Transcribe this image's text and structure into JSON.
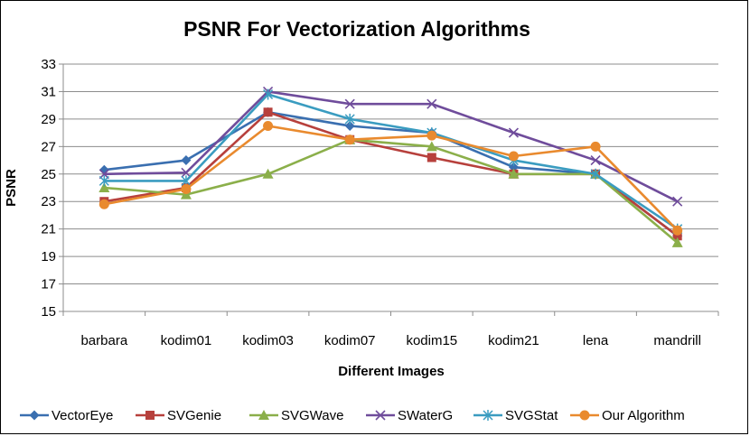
{
  "chart_data": {
    "type": "line",
    "title": "PSNR For Vectorization Algorithms",
    "xlabel": "Different Images",
    "ylabel": "PSNR",
    "ylim": [
      15,
      33
    ],
    "yticks": [
      15,
      17,
      19,
      21,
      23,
      25,
      27,
      29,
      31,
      33
    ],
    "grid": true,
    "legend_position": "bottom",
    "categories": [
      "barbara",
      "kodim01",
      "kodim03",
      "kodim07",
      "kodim15",
      "kodim21",
      "lena",
      "mandrill"
    ],
    "series": [
      {
        "name": "VectorEye",
        "color": "#3A6FB0",
        "marker": "diamond",
        "values": [
          25.3,
          26.0,
          29.5,
          28.5,
          28.0,
          25.5,
          25.0,
          20.5
        ]
      },
      {
        "name": "SVGenie",
        "color": "#B7403C",
        "marker": "square",
        "values": [
          23.0,
          24.0,
          29.5,
          27.5,
          26.2,
          25.0,
          25.0,
          20.5
        ]
      },
      {
        "name": "SVGWave",
        "color": "#8BAF4A",
        "marker": "triangle",
        "values": [
          24.0,
          23.5,
          25.0,
          27.5,
          27.0,
          25.0,
          25.0,
          20.0
        ]
      },
      {
        "name": "SWaterG",
        "color": "#6F4C9B",
        "marker": "x",
        "values": [
          25.0,
          25.1,
          31.0,
          30.1,
          30.1,
          28.0,
          26.0,
          23.0
        ]
      },
      {
        "name": "SVGStat",
        "color": "#3A9CC0",
        "marker": "star",
        "values": [
          24.5,
          24.5,
          30.8,
          29.0,
          28.0,
          26.0,
          25.0,
          21.0
        ]
      },
      {
        "name": "Our Algorithm",
        "color": "#E98A2E",
        "marker": "circle",
        "values": [
          22.8,
          23.9,
          28.5,
          27.5,
          27.8,
          26.3,
          27.0,
          20.9
        ]
      }
    ]
  }
}
